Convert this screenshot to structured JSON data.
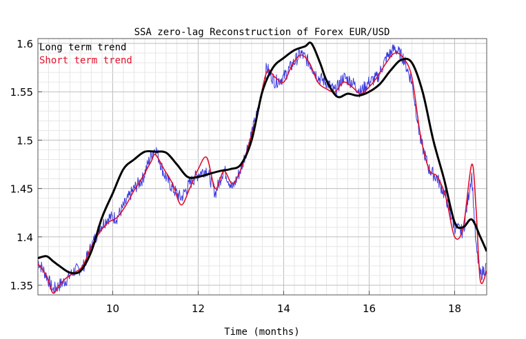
{
  "chart_data": {
    "type": "line",
    "title": "SSA zero-lag Reconstruction of Forex EUR/USD",
    "xlabel": "Time (months)",
    "ylabel": "",
    "xlim": [
      8.25,
      18.75
    ],
    "ylim": [
      1.34,
      1.605
    ],
    "xticks": [
      10,
      12,
      14,
      16,
      18
    ],
    "xtick_labels": [
      "10",
      "12",
      "14",
      "16",
      "18"
    ],
    "yticks": [
      1.35,
      1.4,
      1.45,
      1.5,
      1.55,
      1.6
    ],
    "ytick_labels": [
      "1.35",
      "1.4",
      "1.45",
      "1.5",
      "1.55",
      "1.6"
    ],
    "grid": true,
    "legend_position": "top-left",
    "series": [
      {
        "name": "",
        "role": "raw",
        "color": "#3a3ae0",
        "x": [
          8.25,
          8.45,
          8.6,
          8.75,
          8.9,
          9.1,
          9.3,
          9.5,
          9.7,
          9.9,
          10.1,
          10.3,
          10.5,
          10.7,
          10.9,
          11.0,
          11.2,
          11.4,
          11.6,
          11.8,
          12.0,
          12.2,
          12.4,
          12.6,
          12.8,
          13.0,
          13.2,
          13.4,
          13.6,
          13.8,
          14.0,
          14.2,
          14.4,
          14.6,
          14.8,
          15.0,
          15.2,
          15.4,
          15.6,
          15.8,
          16.0,
          16.2,
          16.4,
          16.6,
          16.8,
          17.0,
          17.2,
          17.4,
          17.6,
          17.8,
          18.0,
          18.2,
          18.4,
          18.5,
          18.6,
          18.75
        ],
        "y": [
          1.375,
          1.36,
          1.345,
          1.35,
          1.355,
          1.365,
          1.368,
          1.39,
          1.41,
          1.42,
          1.42,
          1.435,
          1.45,
          1.46,
          1.485,
          1.492,
          1.465,
          1.45,
          1.44,
          1.455,
          1.465,
          1.47,
          1.445,
          1.47,
          1.45,
          1.47,
          1.5,
          1.53,
          1.575,
          1.56,
          1.565,
          1.578,
          1.59,
          1.58,
          1.565,
          1.56,
          1.55,
          1.565,
          1.56,
          1.55,
          1.56,
          1.565,
          1.585,
          1.595,
          1.585,
          1.56,
          1.5,
          1.47,
          1.46,
          1.44,
          1.41,
          1.405,
          1.465,
          1.39,
          1.36,
          1.37
        ]
      },
      {
        "name": "Short term trend",
        "role": "short",
        "color": "#e0102a",
        "x": [
          8.25,
          8.45,
          8.6,
          8.75,
          8.9,
          9.1,
          9.3,
          9.5,
          9.7,
          9.9,
          10.1,
          10.3,
          10.5,
          10.7,
          10.9,
          11.0,
          11.2,
          11.4,
          11.6,
          11.8,
          12.0,
          12.2,
          12.4,
          12.6,
          12.8,
          13.0,
          13.2,
          13.4,
          13.6,
          13.8,
          14.0,
          14.2,
          14.4,
          14.6,
          14.8,
          15.0,
          15.2,
          15.4,
          15.6,
          15.8,
          16.0,
          16.2,
          16.4,
          16.6,
          16.8,
          17.0,
          17.2,
          17.4,
          17.6,
          17.8,
          18.0,
          18.2,
          18.4,
          18.5,
          18.6,
          18.75
        ],
        "y": [
          1.372,
          1.36,
          1.342,
          1.35,
          1.357,
          1.363,
          1.37,
          1.39,
          1.405,
          1.415,
          1.42,
          1.432,
          1.448,
          1.462,
          1.478,
          1.485,
          1.47,
          1.455,
          1.433,
          1.45,
          1.47,
          1.482,
          1.45,
          1.468,
          1.455,
          1.47,
          1.498,
          1.53,
          1.57,
          1.565,
          1.56,
          1.578,
          1.588,
          1.58,
          1.56,
          1.553,
          1.55,
          1.56,
          1.555,
          1.548,
          1.555,
          1.566,
          1.58,
          1.59,
          1.585,
          1.565,
          1.505,
          1.47,
          1.462,
          1.44,
          1.4,
          1.41,
          1.475,
          1.43,
          1.355,
          1.365
        ]
      },
      {
        "name": "Long term trend",
        "role": "long",
        "color": "#000000",
        "x": [
          8.25,
          8.45,
          8.6,
          8.75,
          9.0,
          9.25,
          9.5,
          9.75,
          10.0,
          10.25,
          10.5,
          10.75,
          11.0,
          11.25,
          11.5,
          11.75,
          12.0,
          12.25,
          12.5,
          12.75,
          13.0,
          13.25,
          13.5,
          13.75,
          14.0,
          14.25,
          14.5,
          14.65,
          14.85,
          15.0,
          15.25,
          15.5,
          15.75,
          16.0,
          16.25,
          16.5,
          16.75,
          17.0,
          17.25,
          17.5,
          17.75,
          18.0,
          18.2,
          18.4,
          18.6,
          18.75
        ],
        "y": [
          1.378,
          1.38,
          1.375,
          1.37,
          1.363,
          1.365,
          1.385,
          1.42,
          1.445,
          1.47,
          1.48,
          1.488,
          1.488,
          1.487,
          1.475,
          1.462,
          1.462,
          1.465,
          1.468,
          1.47,
          1.475,
          1.5,
          1.55,
          1.575,
          1.585,
          1.593,
          1.597,
          1.6,
          1.58,
          1.562,
          1.545,
          1.548,
          1.546,
          1.55,
          1.558,
          1.572,
          1.583,
          1.58,
          1.55,
          1.5,
          1.46,
          1.415,
          1.41,
          1.418,
          1.4,
          1.385
        ]
      }
    ]
  }
}
